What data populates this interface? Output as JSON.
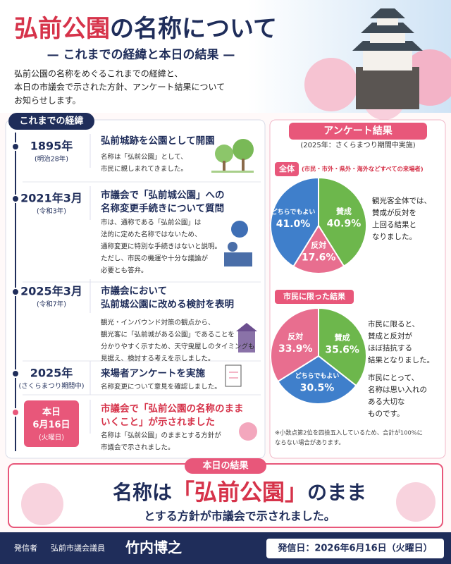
{
  "header": {
    "title_accent": "弘前公園",
    "title_rest": "の名称について",
    "subtitle": "— これまでの経緯と本日の結果 —",
    "intro": [
      "弘前公園の名称をめぐるこれまでの経緯と、",
      "本日の市議会で示された方針、アンケート結果について",
      "お知らせします。"
    ]
  },
  "timeline": {
    "heading": "これまでの経緯",
    "events": [
      {
        "date": [
          "1895年"
        ],
        "sub": "(明治28年)",
        "title": [
          "弘前城跡を公園として開園"
        ],
        "body": [
          "名称は「弘前公園」として、",
          "市民に親しまれてきました。"
        ]
      },
      {
        "date": [
          "2021年3月"
        ],
        "sub": "(令和3年)",
        "title": [
          "市議会で「弘前城公園」への",
          "名称変更手続きについて質問"
        ],
        "body": [
          "市は、通称である「弘前公園」は",
          "法的に定めた名称ではないため、",
          "通称変更に特別な手続きはないと説明。",
          "ただし、市民の機運や十分な議論が",
          "必要とも答弁。"
        ]
      },
      {
        "date": [
          "2025年3月"
        ],
        "sub": "(令和7年)",
        "title": [
          "市議会において",
          "弘前城公園に改める検討を表明"
        ],
        "body": [
          "観光・インバウンド対策の観点から、",
          "観光客に「弘前城がある公園」であることを",
          "分かりやすく示すため、天守曳屋しのタイミングも",
          "見据え、検討する考えを示しました。"
        ]
      },
      {
        "date": [
          "2025年"
        ],
        "sub": "(さくらまつり期間中)",
        "title": [
          "来場者アンケートを実施"
        ],
        "body": [
          "名称変更について意見を確認しました。"
        ]
      },
      {
        "date": [
          "本日",
          "6月16日"
        ],
        "sub": "(火曜日)",
        "title": [
          "市議会で「弘前公園の名称のまま",
          "いくこと」が示されました"
        ],
        "body": [
          "名称は「弘前公園」のままとする方針が",
          "市議会で示されました。"
        ]
      }
    ]
  },
  "survey": {
    "heading": "アンケート結果",
    "sub": "(2025年：さくらまつり期間中実施)",
    "charts": [
      {
        "type": "pie",
        "tag": "全体",
        "desc": "(市民・市外・県外・海外などすべての来場者)",
        "slices": [
          {
            "name": "賛成",
            "value": 40.9,
            "value_label": "40.9%",
            "color": "#6db74c"
          },
          {
            "name": "反対",
            "value": 17.6,
            "value_label": "17.6%",
            "color": "#e86e8f"
          },
          {
            "name": "どちらでもよい",
            "value": 41.0,
            "value_label": "41.0%",
            "color": "#3f7fcb"
          }
        ],
        "comments": [
          [
            "観光客全体では、",
            "賛成が反対を",
            "上回る結果と",
            "なりました。"
          ]
        ]
      },
      {
        "type": "pie",
        "tag": "市民に限った結果",
        "slices": [
          {
            "name": "賛成",
            "value": 35.6,
            "value_label": "35.6%",
            "color": "#6db74c"
          },
          {
            "name": "どちらでもよい",
            "value": 30.5,
            "value_label": "30.5%",
            "color": "#3f7fcb"
          },
          {
            "name": "反対",
            "value": 33.9,
            "value_label": "33.9%",
            "color": "#e86e8f"
          }
        ],
        "comments": [
          [
            "市民に限ると、",
            "賛成と反対が",
            "ほぼ拮抗する",
            "結果となりました。"
          ],
          [
            "市民にとって、",
            "名称は思い入れの",
            "ある大切な",
            "ものです。"
          ]
        ]
      }
    ],
    "note": [
      "※小数点第2位を四捨五入しているため、合計が100%に",
      "ならない場合があります。"
    ]
  },
  "result": {
    "tag": "本日の結果",
    "pre": "名称は",
    "name": "「弘前公園」",
    "post": "のまま",
    "sub": "とする方針が市議会で示されました。"
  },
  "footer": {
    "label": "発信者",
    "org": "弘前市議会議員",
    "person": "竹内博之",
    "date": "発信日：2026年6月16日（火曜日）"
  }
}
